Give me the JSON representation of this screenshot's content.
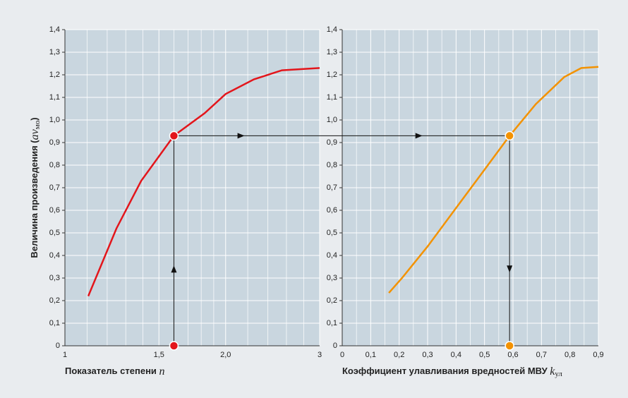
{
  "chart_data": [
    {
      "type": "line",
      "xscale": "log",
      "xlim": [
        1,
        3
      ],
      "ylim": [
        0,
        1.4
      ],
      "xticks": [
        1,
        {
          "value": 1.5,
          "label": "1,5"
        },
        {
          "value": 2.0,
          "label": "2,0"
        },
        3
      ],
      "xgrid": [
        1.1,
        1.2,
        1.3,
        1.4,
        1.6,
        1.7,
        1.8,
        1.9,
        2.2,
        2.4,
        2.6,
        2.8
      ],
      "yticks": [
        0,
        {
          "value": 0.1,
          "label": "0,1"
        },
        {
          "value": 0.2,
          "label": "0,2"
        },
        {
          "value": 0.3,
          "label": "0,3"
        },
        {
          "value": 0.4,
          "label": "0,4"
        },
        {
          "value": 0.5,
          "label": "0,5"
        },
        {
          "value": 0.6,
          "label": "0,6"
        },
        {
          "value": 0.7,
          "label": "0,7"
        },
        {
          "value": 0.8,
          "label": "0,8"
        },
        {
          "value": 0.9,
          "label": "0,9"
        },
        {
          "value": 1.0,
          "label": "1,0"
        },
        {
          "value": 1.1,
          "label": "1,1"
        },
        {
          "value": 1.2,
          "label": "1,2"
        },
        {
          "value": 1.3,
          "label": "1,3"
        },
        {
          "value": 1.4,
          "label": "1,4"
        }
      ],
      "ylabel": [
        "Величина произведения (",
        "av",
        "мо",
        ")"
      ],
      "xlabel": [
        "Показатель степени ",
        "n"
      ],
      "color": "#e3151b",
      "x": [
        1.106,
        1.249,
        1.389,
        1.6,
        1.827,
        2.0,
        2.26,
        2.55,
        3.0
      ],
      "values": [
        0.22,
        0.52,
        0.73,
        0.93,
        1.03,
        1.115,
        1.18,
        1.22,
        1.23
      ],
      "highlight": {
        "x": 1.6,
        "y": 0.93
      }
    },
    {
      "type": "line",
      "xlim": [
        0,
        0.9
      ],
      "ylim": [
        0,
        1.4
      ],
      "xticks": [
        0,
        {
          "value": 0.1,
          "label": "0,1"
        },
        {
          "value": 0.2,
          "label": "0,2"
        },
        {
          "value": 0.3,
          "label": "0,3"
        },
        {
          "value": 0.4,
          "label": "0,4"
        },
        {
          "value": 0.5,
          "label": "0,5"
        },
        {
          "value": 0.6,
          "label": "0,6"
        },
        {
          "value": 0.7,
          "label": "0,7"
        },
        {
          "value": 0.8,
          "label": "0,8"
        },
        {
          "value": 0.9,
          "label": "0,9"
        }
      ],
      "xgrid": [
        0.05,
        0.15,
        0.25,
        0.35,
        0.45,
        0.55,
        0.65,
        0.75,
        0.85
      ],
      "yticks": [
        0,
        {
          "value": 0.1,
          "label": "0,1"
        },
        {
          "value": 0.2,
          "label": "0,2"
        },
        {
          "value": 0.3,
          "label": "0,3"
        },
        {
          "value": 0.4,
          "label": "0,4"
        },
        {
          "value": 0.5,
          "label": "0,5"
        },
        {
          "value": 0.6,
          "label": "0,6"
        },
        {
          "value": 0.7,
          "label": "0,7"
        },
        {
          "value": 0.8,
          "label": "0,8"
        },
        {
          "value": 0.9,
          "label": "0,9"
        },
        {
          "value": 1.0,
          "label": "1,0"
        },
        {
          "value": 1.1,
          "label": "1,1"
        },
        {
          "value": 1.2,
          "label": "1,2"
        },
        {
          "value": 1.3,
          "label": "1,3"
        },
        {
          "value": 1.4,
          "label": "1,4"
        }
      ],
      "xlabel": [
        "Коэффициент улавливания вредностей МВУ ",
        "k",
        "ул"
      ],
      "color": "#f39200",
      "x": [
        0.164,
        0.21,
        0.3,
        0.4,
        0.5,
        0.588,
        0.68,
        0.78,
        0.84,
        0.9
      ],
      "values": [
        0.234,
        0.3,
        0.44,
        0.61,
        0.78,
        0.93,
        1.07,
        1.19,
        1.23,
        1.235
      ],
      "highlight": {
        "x": 0.588,
        "y": 0.93
      }
    }
  ]
}
